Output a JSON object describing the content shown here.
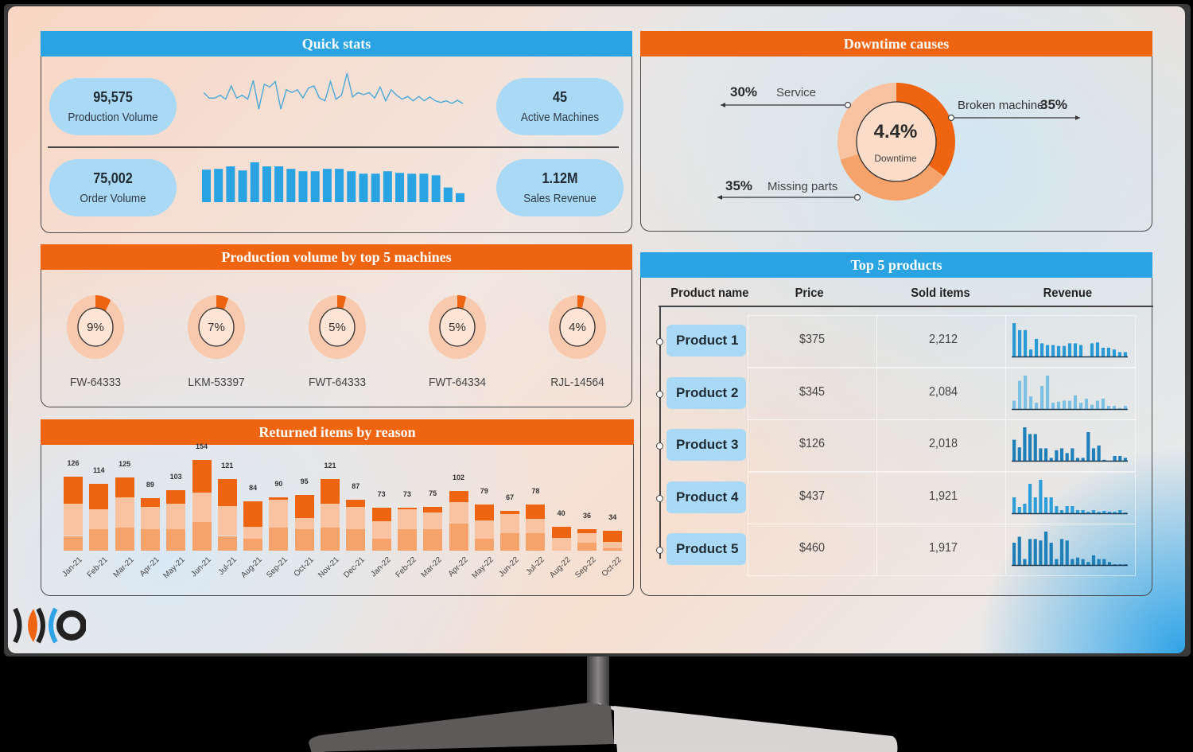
{
  "quick_stats": {
    "title": "Quick stats",
    "production_volume": {
      "value": "95,575",
      "label": "Production Volume"
    },
    "active_machines": {
      "value": "45",
      "label": "Active Machines"
    },
    "order_volume": {
      "value": "75,002",
      "label": "Order Volume"
    },
    "sales_revenue": {
      "value": "1.12M",
      "label": "Sales Revenue"
    },
    "production_sparkline": [
      40,
      30,
      30,
      35,
      28,
      52,
      30,
      35,
      28,
      62,
      10,
      55,
      50,
      60,
      10,
      45,
      40,
      45,
      30,
      48,
      52,
      30,
      25,
      60,
      28,
      35,
      75,
      32,
      40,
      36,
      40,
      30,
      50,
      25,
      45,
      35,
      28,
      33,
      25,
      33,
      25,
      32,
      25,
      22,
      25,
      20,
      26,
      20
    ],
    "order_bars": [
      40,
      41,
      44,
      39,
      49,
      44,
      44,
      41,
      38,
      38,
      41,
      41,
      38,
      35,
      35,
      38,
      36,
      35,
      35,
      33,
      18,
      11
    ]
  },
  "downtime": {
    "title": "Downtime causes",
    "center_value": "4.4%",
    "center_label": "Downtime",
    "causes": [
      {
        "label": "Broken machine",
        "pct": "35%",
        "value": 35,
        "color": "#ee6411"
      },
      {
        "label": "Missing parts",
        "pct": "35%",
        "value": 35,
        "color": "#f6a36b"
      },
      {
        "label": "Service",
        "pct": "30%",
        "value": 30,
        "color": "#f9c2a0"
      }
    ]
  },
  "machines": {
    "title": "Production  volume by top 5 machines",
    "items": [
      {
        "name": "FW-64333",
        "pct": "9%",
        "value": 9
      },
      {
        "name": "LKM-53397",
        "pct": "7%",
        "value": 7
      },
      {
        "name": "FWT-64333",
        "pct": "5%",
        "value": 5
      },
      {
        "name": "FWT-64334",
        "pct": "5%",
        "value": 5
      },
      {
        "name": "RJL-14564",
        "pct": "4%",
        "value": 4
      }
    ]
  },
  "products": {
    "title": "Top 5 products",
    "headers": [
      "Product name",
      "Price",
      "Sold items",
      "Revenue"
    ],
    "rows": [
      {
        "name": "Product 1",
        "price": "$375",
        "sold": "2,212",
        "color": "#2a9ad6",
        "spark": [
          38,
          30,
          30,
          8,
          20,
          15,
          13,
          13,
          12,
          12,
          15,
          15,
          13,
          0,
          15,
          16,
          10,
          10,
          8,
          5,
          5
        ]
      },
      {
        "name": "Product 2",
        "price": "$345",
        "sold": "2,084",
        "color": "#7cc0e4",
        "spark": [
          8,
          27,
          32,
          12,
          6,
          22,
          32,
          6,
          7,
          8,
          8,
          13,
          6,
          10,
          4,
          8,
          10,
          3,
          3,
          1,
          3
        ]
      },
      {
        "name": "Product 3",
        "price": "$126",
        "sold": "2,018",
        "color": "#1f7fb8",
        "spark": [
          22,
          14,
          35,
          28,
          28,
          13,
          13,
          3,
          11,
          13,
          8,
          13,
          3,
          3,
          30,
          13,
          16,
          1,
          0,
          5,
          5,
          3
        ]
      },
      {
        "name": "Product 4",
        "price": "$437",
        "sold": "1,921",
        "color": "#2e9ed9",
        "spark": [
          20,
          8,
          12,
          37,
          20,
          42,
          20,
          20,
          9,
          4,
          9,
          9,
          4,
          4,
          2,
          4,
          2,
          3,
          2,
          2,
          4,
          1
        ]
      },
      {
        "name": "Product 5",
        "price": "$460",
        "sold": "1,917",
        "color": "#1f7fb8",
        "spark": [
          30,
          38,
          8,
          35,
          35,
          33,
          45,
          30,
          8,
          35,
          33,
          8,
          10,
          8,
          4,
          13,
          8,
          8,
          4,
          1,
          1,
          1
        ]
      }
    ]
  },
  "returns": {
    "title": "Returned items by reason"
  },
  "chart_data": [
    {
      "type": "bar",
      "title": "Returned items by reason",
      "stacked": true,
      "categories": [
        "Jan-21",
        "Feb-21",
        "Mar-21",
        "Apr-21",
        "May-21",
        "Jun-21",
        "Jul-21",
        "Aug-21",
        "Sep-21",
        "Oct-21",
        "Nov-21",
        "Dec-21",
        "Jan-22",
        "Feb-22",
        "Mar-22",
        "Apr-22",
        "May-22",
        "Jun-22",
        "Jul-22",
        "Aug-22",
        "Sep-22",
        "Oct-22"
      ],
      "totals": [
        126,
        114,
        125,
        89,
        103,
        154,
        121,
        84,
        90,
        95,
        121,
        87,
        73,
        73,
        75,
        102,
        79,
        67,
        78,
        40,
        36,
        34
      ],
      "series": [
        {
          "name": "Reason A",
          "color": "#f6a36b",
          "values": [
            25,
            36,
            39,
            36,
            36,
            49,
            25,
            20,
            39,
            36,
            39,
            36,
            20,
            36,
            36,
            46,
            20,
            30,
            30,
            0,
            14,
            4
          ]
        },
        {
          "name": "Reason B",
          "color": "#f9c2a0",
          "values": [
            55,
            34,
            51,
            38,
            44,
            50,
            51,
            20,
            47,
            20,
            41,
            38,
            30,
            34,
            29,
            36,
            31,
            32,
            24,
            21,
            16,
            11
          ]
        },
        {
          "name": "Reason C",
          "color": "#ee6411",
          "values": [
            46,
            44,
            35,
            15,
            23,
            55,
            45,
            44,
            4,
            39,
            41,
            13,
            23,
            3,
            10,
            20,
            28,
            5,
            24,
            19,
            6,
            19
          ]
        }
      ],
      "xlabel": "",
      "ylabel": "",
      "grid": false,
      "legend": "none"
    },
    {
      "type": "pie",
      "title": "Downtime causes",
      "categories": [
        "Broken machine",
        "Missing parts",
        "Service"
      ],
      "values": [
        35,
        35,
        30
      ],
      "center_label": "4.4% Downtime"
    },
    {
      "type": "pie",
      "title": "Production volume by top 5 machines",
      "categories": [
        "FW-64333",
        "LKM-53397",
        "FWT-64333",
        "FWT-64334",
        "RJL-14564"
      ],
      "values": [
        9,
        7,
        5,
        5,
        4
      ]
    }
  ],
  "brand": {
    "logo": "logo-mark"
  }
}
